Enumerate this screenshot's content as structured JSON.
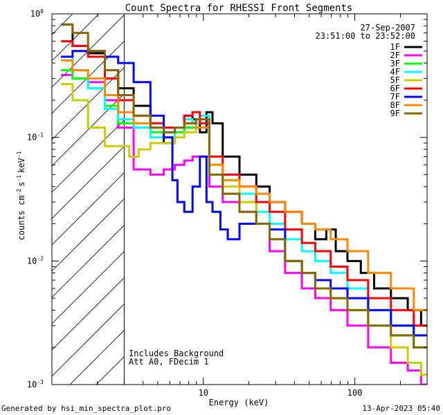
{
  "chart_data": {
    "type": "line",
    "title": "Count Spectra for RHESSI Front Segments",
    "xlabel": "Energy (keV)",
    "ylabel": "counts cm",
    "ylabel_exp1": "-2",
    "ylabel_s": "s",
    "ylabel_exp2": "-1",
    "ylabel_kev": "keV",
    "ylabel_exp3": "-1",
    "xscale": "log",
    "yscale": "log",
    "xlim": [
      1,
      300
    ],
    "ylim": [
      0.001,
      1
    ],
    "x_ticks": [
      {
        "value": 10,
        "label": "10"
      },
      {
        "value": 100,
        "label": "100"
      }
    ],
    "y_ticks": [
      {
        "value": 0.001,
        "base": "10",
        "exp": "-3"
      },
      {
        "value": 0.01,
        "base": "10",
        "exp": "-2"
      },
      {
        "value": 0.1,
        "base": "10",
        "exp": "-1"
      },
      {
        "value": 1,
        "base": "10",
        "exp": "0"
      }
    ],
    "hatched_region_keV": [
      1,
      3
    ],
    "legend": {
      "placement": "top-right",
      "date": "27-Sep-2007",
      "time_range": "23:51:00 to 23:52:00"
    },
    "annotations": [
      "Includes Background",
      "Att A0, FDecim 1"
    ],
    "series": [
      {
        "name": "1F",
        "color": "#000000",
        "points": [
          [
            1.25,
            0.82
          ],
          [
            1.5,
            0.55
          ],
          [
            2,
            0.48
          ],
          [
            2.5,
            0.35
          ],
          [
            3,
            0.25
          ],
          [
            4,
            0.18
          ],
          [
            5,
            0.12
          ],
          [
            6,
            0.09
          ],
          [
            7,
            0.12
          ],
          [
            8,
            0.15
          ],
          [
            9,
            0.14
          ],
          [
            10,
            0.11
          ],
          [
            11,
            0.16
          ],
          [
            12,
            0.13
          ],
          [
            15,
            0.07
          ],
          [
            20,
            0.05
          ],
          [
            25,
            0.04
          ],
          [
            30,
            0.03
          ],
          [
            40,
            0.025
          ],
          [
            50,
            0.02
          ],
          [
            60,
            0.015
          ],
          [
            70,
            0.018
          ],
          [
            80,
            0.012
          ],
          [
            100,
            0.01
          ],
          [
            120,
            0.008
          ],
          [
            150,
            0.006
          ],
          [
            200,
            0.005
          ],
          [
            250,
            0.004
          ],
          [
            300,
            0.003
          ]
        ]
      },
      {
        "name": "2F",
        "color": "#ff00ff",
        "points": [
          [
            1.25,
            0.32
          ],
          [
            1.5,
            0.3
          ],
          [
            2,
            0.28
          ],
          [
            2.5,
            0.2
          ],
          [
            3,
            0.12
          ],
          [
            4,
            0.055
          ],
          [
            5,
            0.05
          ],
          [
            6,
            0.055
          ],
          [
            7,
            0.06
          ],
          [
            8,
            0.065
          ],
          [
            9,
            0.07
          ],
          [
            10,
            0.07
          ],
          [
            12,
            0.04
          ],
          [
            15,
            0.03
          ],
          [
            20,
            0.025
          ],
          [
            25,
            0.02
          ],
          [
            30,
            0.012
          ],
          [
            40,
            0.008
          ],
          [
            50,
            0.006
          ],
          [
            60,
            0.005
          ],
          [
            80,
            0.004
          ],
          [
            100,
            0.003
          ],
          [
            150,
            0.002
          ],
          [
            200,
            0.0015
          ],
          [
            250,
            0.0013
          ],
          [
            300,
            0.001
          ]
        ]
      },
      {
        "name": "3F",
        "color": "#00ff00",
        "points": [
          [
            1.25,
            0.35
          ],
          [
            1.5,
            0.3
          ],
          [
            2,
            0.25
          ],
          [
            2.5,
            0.18
          ],
          [
            3,
            0.13
          ],
          [
            4,
            0.12
          ],
          [
            5,
            0.11
          ],
          [
            6,
            0.1
          ],
          [
            7,
            0.11
          ],
          [
            8,
            0.12
          ],
          [
            10,
            0.12
          ],
          [
            12,
            0.05
          ],
          [
            15,
            0.035
          ],
          [
            20,
            0.03
          ],
          [
            25,
            0.02
          ],
          [
            30,
            0.015
          ],
          [
            40,
            0.01
          ],
          [
            50,
            0.008
          ],
          [
            60,
            0.006
          ],
          [
            80,
            0.005
          ],
          [
            100,
            0.004
          ],
          [
            150,
            0.003
          ],
          [
            200,
            0.0025
          ],
          [
            300,
            0.002
          ]
        ]
      },
      {
        "name": "4F",
        "color": "#00ffff",
        "points": [
          [
            1.25,
            0.45
          ],
          [
            1.5,
            0.35
          ],
          [
            2,
            0.25
          ],
          [
            2.5,
            0.17
          ],
          [
            3,
            0.14
          ],
          [
            4,
            0.12
          ],
          [
            5,
            0.1
          ],
          [
            6,
            0.1
          ],
          [
            7,
            0.12
          ],
          [
            8,
            0.14
          ],
          [
            9,
            0.13
          ],
          [
            10,
            0.15
          ],
          [
            12,
            0.07
          ],
          [
            15,
            0.05
          ],
          [
            20,
            0.035
          ],
          [
            25,
            0.025
          ],
          [
            30,
            0.02
          ],
          [
            40,
            0.015
          ],
          [
            50,
            0.012
          ],
          [
            60,
            0.01
          ],
          [
            80,
            0.008
          ],
          [
            100,
            0.006
          ],
          [
            150,
            0.004
          ],
          [
            200,
            0.003
          ],
          [
            300,
            0.0025
          ]
        ]
      },
      {
        "name": "5F",
        "color": "#cccc00",
        "points": [
          [
            1.25,
            0.27
          ],
          [
            1.5,
            0.2
          ],
          [
            2,
            0.12
          ],
          [
            2.5,
            0.085
          ],
          [
            3,
            0.085
          ],
          [
            3.5,
            0.07
          ],
          [
            4,
            0.08
          ],
          [
            5,
            0.09
          ],
          [
            6,
            0.09
          ],
          [
            7,
            0.1
          ],
          [
            8,
            0.11
          ],
          [
            10,
            0.12
          ],
          [
            12,
            0.06
          ],
          [
            15,
            0.04
          ],
          [
            20,
            0.03
          ],
          [
            25,
            0.02
          ],
          [
            30,
            0.015
          ],
          [
            40,
            0.01
          ],
          [
            50,
            0.008
          ],
          [
            60,
            0.006
          ],
          [
            80,
            0.005
          ],
          [
            100,
            0.004
          ],
          [
            150,
            0.003
          ],
          [
            200,
            0.002
          ],
          [
            250,
            0.0015
          ],
          [
            300,
            0.0012
          ]
        ]
      },
      {
        "name": "6F",
        "color": "#ff0000",
        "points": [
          [
            1.25,
            0.6
          ],
          [
            1.5,
            0.55
          ],
          [
            2,
            0.45
          ],
          [
            2.5,
            0.3
          ],
          [
            3,
            0.2
          ],
          [
            4,
            0.15
          ],
          [
            5,
            0.13
          ],
          [
            6,
            0.12
          ],
          [
            7,
            0.12
          ],
          [
            8,
            0.15
          ],
          [
            9,
            0.16
          ],
          [
            10,
            0.13
          ],
          [
            12,
            0.07
          ],
          [
            15,
            0.05
          ],
          [
            20,
            0.04
          ],
          [
            25,
            0.03
          ],
          [
            30,
            0.025
          ],
          [
            40,
            0.018
          ],
          [
            50,
            0.014
          ],
          [
            60,
            0.012
          ],
          [
            80,
            0.009
          ],
          [
            100,
            0.007
          ],
          [
            150,
            0.005
          ],
          [
            200,
            0.004
          ],
          [
            300,
            0.003
          ]
        ]
      },
      {
        "name": "7F",
        "color": "#0000ff",
        "points": [
          [
            1.25,
            0.45
          ],
          [
            1.5,
            0.5
          ],
          [
            2,
            0.5
          ],
          [
            2.5,
            0.45
          ],
          [
            3,
            0.4
          ],
          [
            4,
            0.28
          ],
          [
            5,
            0.15
          ],
          [
            6,
            0.1
          ],
          [
            6.5,
            0.045
          ],
          [
            7,
            0.03
          ],
          [
            8,
            0.025
          ],
          [
            9,
            0.04
          ],
          [
            10,
            0.07
          ],
          [
            11,
            0.03
          ],
          [
            12,
            0.025
          ],
          [
            14,
            0.018
          ],
          [
            15,
            0.015
          ],
          [
            20,
            0.02
          ],
          [
            25,
            0.02
          ],
          [
            30,
            0.018
          ],
          [
            40,
            0.01
          ],
          [
            50,
            0.008
          ],
          [
            60,
            0.007
          ],
          [
            80,
            0.006
          ],
          [
            100,
            0.005
          ],
          [
            150,
            0.004
          ],
          [
            200,
            0.003
          ],
          [
            300,
            0.0025
          ]
        ]
      },
      {
        "name": "8F",
        "color": "#ff8800",
        "points": [
          [
            1.25,
            0.42
          ],
          [
            1.5,
            0.35
          ],
          [
            2,
            0.3
          ],
          [
            2.5,
            0.22
          ],
          [
            3,
            0.16
          ],
          [
            4,
            0.13
          ],
          [
            5,
            0.12
          ],
          [
            6,
            0.11
          ],
          [
            7,
            0.12
          ],
          [
            8,
            0.13
          ],
          [
            10,
            0.12
          ],
          [
            12,
            0.06
          ],
          [
            15,
            0.045
          ],
          [
            20,
            0.04
          ],
          [
            25,
            0.035
          ],
          [
            30,
            0.03
          ],
          [
            40,
            0.025
          ],
          [
            50,
            0.02
          ],
          [
            60,
            0.018
          ],
          [
            80,
            0.015
          ],
          [
            100,
            0.012
          ],
          [
            150,
            0.008
          ],
          [
            200,
            0.006
          ],
          [
            300,
            0.004
          ]
        ]
      },
      {
        "name": "9F",
        "color": "#886600",
        "points": [
          [
            1.25,
            0.82
          ],
          [
            1.5,
            0.7
          ],
          [
            2,
            0.5
          ],
          [
            2.5,
            0.35
          ],
          [
            3,
            0.22
          ],
          [
            4,
            0.15
          ],
          [
            5,
            0.12
          ],
          [
            6,
            0.11
          ],
          [
            7,
            0.12
          ],
          [
            8,
            0.13
          ],
          [
            10,
            0.14
          ],
          [
            12,
            0.05
          ],
          [
            15,
            0.035
          ],
          [
            20,
            0.025
          ],
          [
            25,
            0.02
          ],
          [
            30,
            0.015
          ],
          [
            40,
            0.01
          ],
          [
            50,
            0.008
          ],
          [
            60,
            0.006
          ],
          [
            80,
            0.005
          ],
          [
            100,
            0.004
          ],
          [
            150,
            0.003
          ],
          [
            200,
            0.0025
          ],
          [
            300,
            0.002
          ]
        ]
      }
    ]
  },
  "footer": {
    "left": "Generated by hsi_min_spectra_plot.pro",
    "right": "13-Apr-2023 05:40"
  }
}
